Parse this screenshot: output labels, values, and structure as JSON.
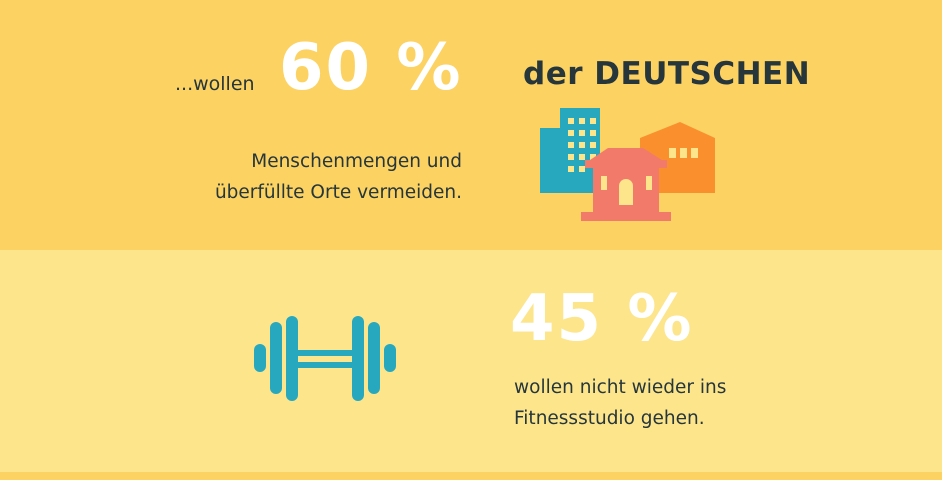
{
  "section1": {
    "prefix": "...wollen",
    "percent": "60 %",
    "tail": "der DEUTSCHEN",
    "lines": [
      "Menschenmengen und",
      "überfüllte Orte vermeiden."
    ],
    "icon": "buildings-icon"
  },
  "section2": {
    "percent": "45 %",
    "lines": [
      "wollen nicht wieder ins",
      "Fitnessstudio gehen."
    ],
    "icon": "dumbbell-icon"
  },
  "colors": {
    "top_band": "#fcd262",
    "mid_band": "#fde58c",
    "text_dark": "#26363a",
    "teal": "#27a8bf",
    "orange": "#fa8f2e",
    "coral": "#f27a6a"
  }
}
